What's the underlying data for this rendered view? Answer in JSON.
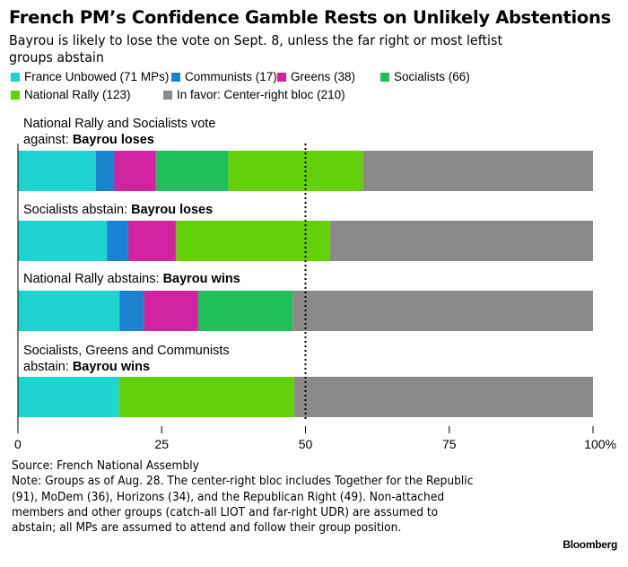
{
  "chart_data": {
    "type": "bar",
    "orientation": "horizontal-stacked-100",
    "title": "French PM’s Confidence Gamble Rests on Unlikely Abstentions",
    "subtitle": "Bayrou is likely to lose the vote on Sept. 8, unless the far right or most leftist groups abstain",
    "legend": [
      {
        "name": "France Unbowed (71 MPs)",
        "color": "#1fd3cf"
      },
      {
        "name": "Communists (17)",
        "color": "#1b82d2"
      },
      {
        "name": "Greens (38)",
        "color": "#d1239f"
      },
      {
        "name": "Socialists (66)",
        "color": "#1fbf5c"
      },
      {
        "name": "National Rally (123)",
        "color": "#63d10a"
      },
      {
        "name": "In favor: Center-right bloc (210)",
        "color": "#8a8a8a"
      }
    ],
    "series_names": [
      "France Unbowed",
      "Communists",
      "Greens",
      "Socialists",
      "National Rally",
      "Center-right bloc"
    ],
    "scenarios": [
      {
        "label": "National Rally and Socialists vote against: ",
        "outcome": "Bayrou loses",
        "mps": [
          71,
          17,
          38,
          66,
          123,
          210
        ]
      },
      {
        "label": "Socialists abstain: ",
        "outcome": "Bayrou loses",
        "mps": [
          71,
          17,
          38,
          0,
          123,
          210
        ]
      },
      {
        "label": "National Rally abstains: ",
        "outcome": "Bayrou wins",
        "mps": [
          71,
          17,
          38,
          66,
          0,
          210
        ]
      },
      {
        "label": "Socialists, Greens and Communists abstain: ",
        "outcome": "Bayrou wins",
        "mps": [
          71,
          0,
          0,
          0,
          123,
          210
        ]
      }
    ],
    "xlim": [
      0,
      100
    ],
    "xticks": [
      "0",
      "25",
      "50",
      "75",
      "100%"
    ],
    "xtick_values": [
      0,
      25,
      50,
      75,
      100
    ],
    "reference_line": 50,
    "source": "Source: French National Assembly",
    "note": "Note: Groups as of Aug. 28. The center-right bloc includes Together for the Republic (91), MoDem (36), Horizons (34), and the Republican Right (49). Non-attached members and other groups (catch-all LIOT and far-right UDR) are assumed to abstain; all MPs are assumed to attend and follow their group position.",
    "brand": "Bloomberg"
  }
}
